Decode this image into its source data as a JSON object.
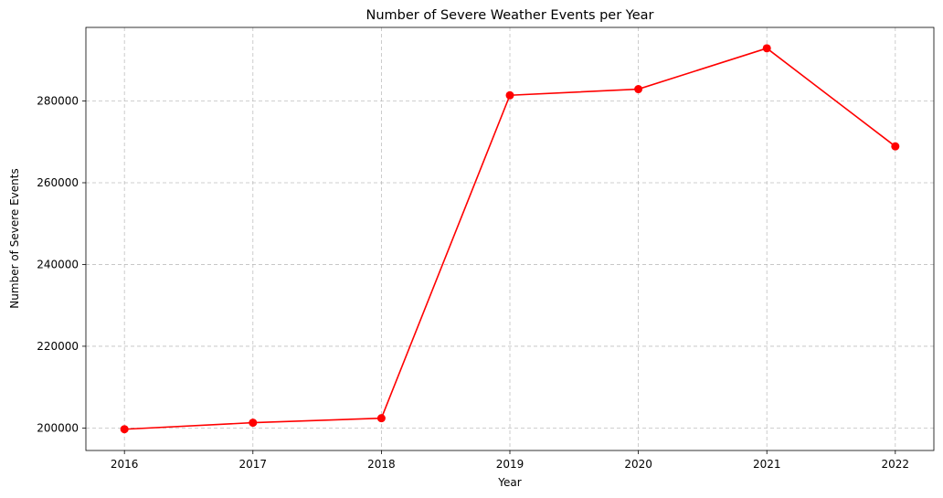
{
  "chart_data": {
    "type": "line",
    "title": "Number of Severe Weather Events per Year",
    "xlabel": "Year",
    "ylabel": "Number of Severe Events",
    "x": [
      2016,
      2017,
      2018,
      2019,
      2020,
      2021,
      2022
    ],
    "x_tick_labels": [
      "2016",
      "2017",
      "2018",
      "2019",
      "2020",
      "2021",
      "2022"
    ],
    "xlim": [
      2015.7,
      2022.3
    ],
    "y_ticks": [
      200000,
      220000,
      240000,
      260000,
      280000
    ],
    "y_tick_labels": [
      "200000",
      "220000",
      "240000",
      "260000",
      "280000"
    ],
    "ylim": [
      194500,
      298000
    ],
    "grid": true,
    "series": [
      {
        "color": "#ff0000",
        "marker": "circle",
        "values": [
          199700,
          201300,
          202400,
          281400,
          282900,
          292900,
          268900
        ]
      }
    ]
  }
}
